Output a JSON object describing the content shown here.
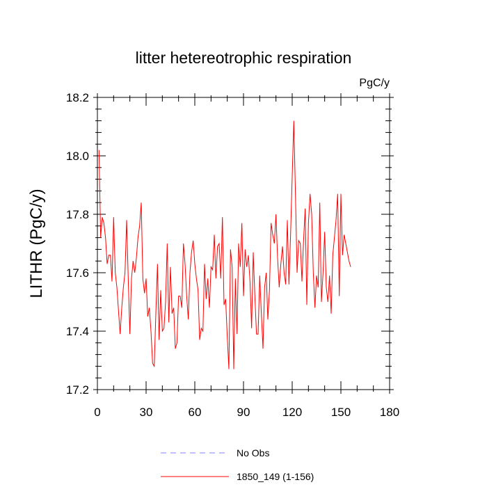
{
  "chart_data": {
    "type": "line",
    "title": "litter hetereotrophic respiration",
    "units": "PgC/y",
    "xlabel": "",
    "ylabel": "LITHR  (PgC/y)",
    "xlim": [
      0,
      180
    ],
    "ylim": [
      17.2,
      18.2
    ],
    "xticks": [
      0,
      30,
      60,
      90,
      120,
      150,
      180
    ],
    "yticks": [
      17.2,
      17.4,
      17.6,
      17.8,
      18.0,
      18.2
    ],
    "xtick_labels": [
      "0",
      "30",
      "60",
      "90",
      "120",
      "150",
      "180"
    ],
    "ytick_labels": [
      "17.2",
      "17.4",
      "17.6",
      "17.8",
      "18.0",
      "18.2"
    ],
    "grid": false,
    "legend_position": "bottom",
    "series": [
      {
        "name": "No Obs",
        "color": "#8080ff",
        "style": "dashed",
        "x": [],
        "y": []
      },
      {
        "name": "1850_149 (1-156)",
        "color": "#ff0000",
        "style": "solid",
        "x": [
          1,
          2,
          3,
          4,
          5,
          6,
          7,
          8,
          9,
          10,
          11,
          12,
          13,
          14,
          15,
          16,
          17,
          18,
          19,
          20,
          21,
          22,
          23,
          24,
          25,
          26,
          27,
          28,
          29,
          30,
          31,
          32,
          33,
          34,
          35,
          36,
          37,
          38,
          39,
          40,
          41,
          42,
          43,
          44,
          45,
          46,
          47,
          48,
          49,
          50,
          51,
          52,
          53,
          54,
          55,
          56,
          57,
          58,
          59,
          60,
          61,
          62,
          63,
          64,
          65,
          66,
          67,
          68,
          69,
          70,
          71,
          72,
          73,
          74,
          75,
          76,
          77,
          78,
          79,
          80,
          81,
          82,
          83,
          84,
          85,
          86,
          87,
          88,
          89,
          90,
          91,
          92,
          93,
          94,
          95,
          96,
          97,
          98,
          99,
          100,
          101,
          102,
          103,
          104,
          105,
          106,
          107,
          108,
          109,
          110,
          111,
          112,
          113,
          114,
          115,
          116,
          117,
          118,
          119,
          120,
          121,
          122,
          123,
          124,
          125,
          126,
          127,
          128,
          129,
          130,
          131,
          132,
          133,
          134,
          135,
          136,
          137,
          138,
          139,
          140,
          141,
          142,
          143,
          144,
          145,
          146,
          147,
          148,
          149,
          150,
          151,
          152,
          153,
          154,
          155,
          156
        ],
        "y": [
          18.02,
          17.72,
          17.79,
          17.77,
          17.72,
          17.63,
          17.66,
          17.66,
          17.57,
          17.79,
          17.6,
          17.55,
          17.47,
          17.39,
          17.48,
          17.55,
          17.6,
          17.78,
          17.58,
          17.39,
          17.58,
          17.64,
          17.6,
          17.65,
          17.72,
          17.76,
          17.84,
          17.58,
          17.53,
          17.58,
          17.45,
          17.48,
          17.4,
          17.29,
          17.28,
          17.46,
          17.63,
          17.37,
          17.54,
          17.4,
          17.41,
          17.5,
          17.7,
          17.43,
          17.62,
          17.46,
          17.48,
          17.34,
          17.36,
          17.52,
          17.52,
          17.48,
          17.7,
          17.63,
          17.52,
          17.44,
          17.6,
          17.67,
          17.71,
          17.63,
          17.58,
          17.54,
          17.37,
          17.41,
          17.4,
          17.63,
          17.51,
          17.58,
          17.48,
          17.62,
          17.61,
          17.73,
          17.58,
          17.69,
          17.7,
          17.58,
          17.79,
          17.49,
          17.51,
          17.38,
          17.27,
          17.68,
          17.62,
          17.27,
          17.58,
          17.39,
          17.7,
          17.62,
          17.77,
          17.52,
          17.68,
          17.62,
          17.66,
          17.57,
          17.41,
          17.67,
          17.52,
          17.39,
          17.39,
          17.59,
          17.46,
          17.34,
          17.55,
          17.6,
          17.44,
          17.54,
          17.77,
          17.73,
          17.7,
          17.8,
          17.65,
          17.55,
          17.63,
          17.69,
          17.6,
          17.56,
          17.78,
          17.56,
          17.73,
          17.93,
          18.12,
          17.87,
          17.6,
          17.71,
          17.7,
          17.57,
          17.71,
          17.82,
          17.49,
          17.77,
          17.87,
          17.8,
          17.6,
          17.48,
          17.59,
          17.55,
          17.84,
          17.5,
          17.6,
          17.74,
          17.55,
          17.5,
          17.59,
          17.46,
          17.66,
          17.72,
          17.78,
          17.87,
          17.52,
          17.87,
          17.66,
          17.73,
          17.7,
          17.67,
          17.64,
          17.62
        ]
      }
    ]
  }
}
